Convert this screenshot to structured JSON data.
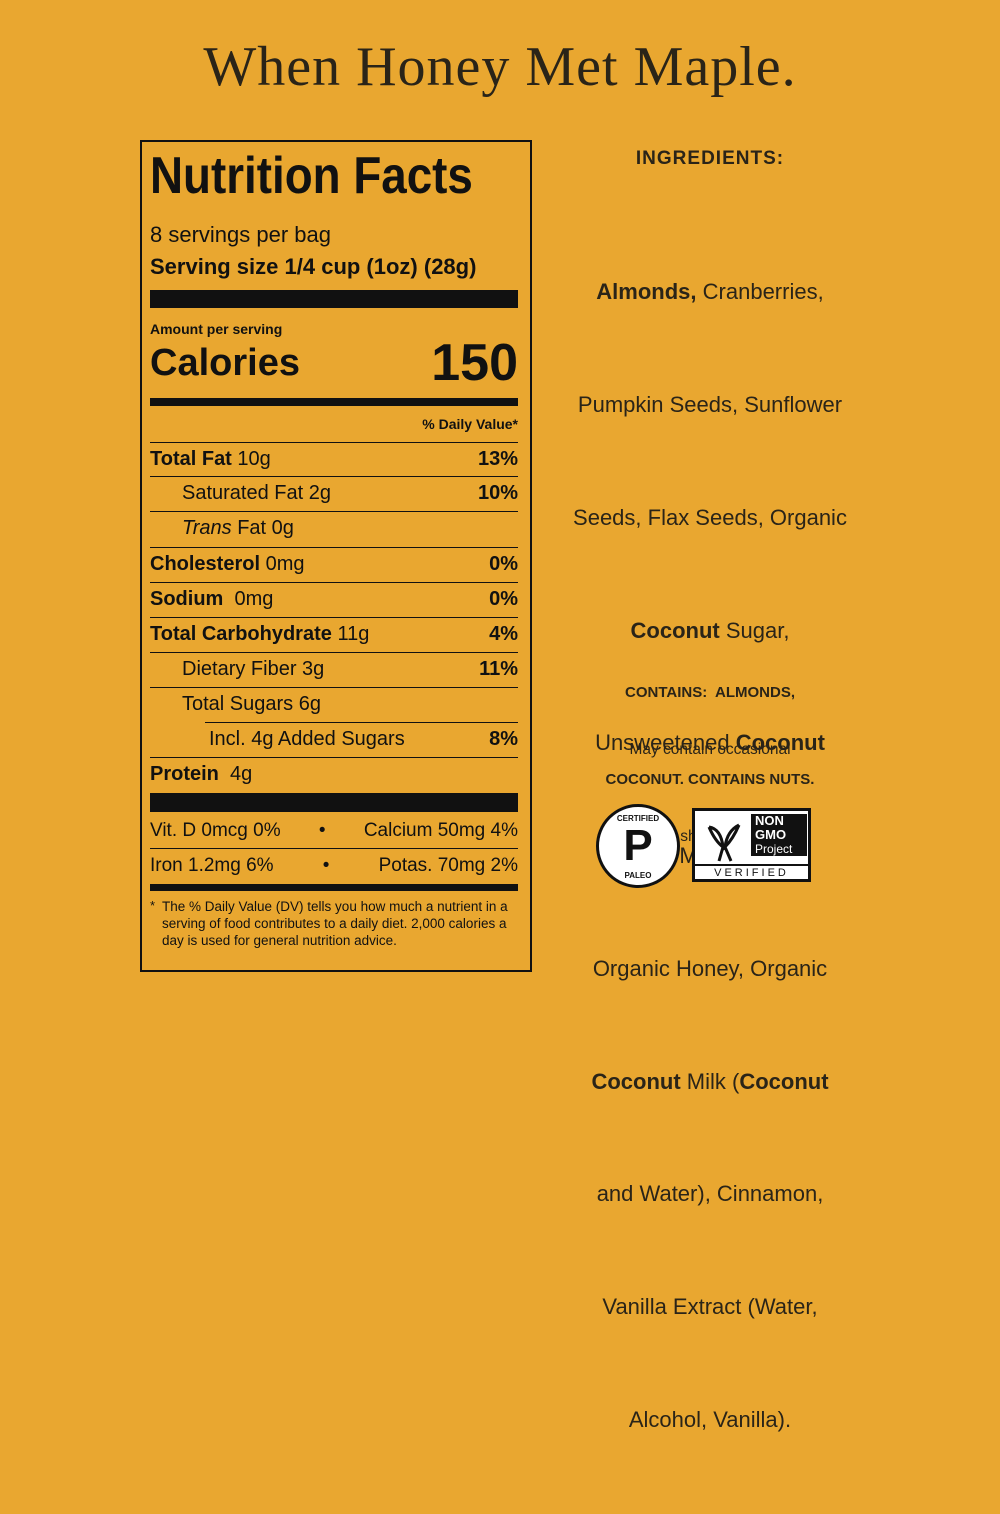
{
  "title": "When Honey Met Maple.",
  "nutrition": {
    "heading": "Nutrition Facts",
    "servings": "8 servings per bag",
    "serving_size_label": "Serving size",
    "serving_size_value": "1/4 cup (1oz) (28g)",
    "amount_per_serving": "Amount per serving",
    "calories_label": "Calories",
    "calories": 150,
    "dv_header": "% Daily Value*",
    "rows": [
      {
        "label": "Total Fat",
        "amount": "10g",
        "dv": "13%"
      },
      {
        "label": "Saturated Fat",
        "amount": "2g",
        "dv": "10%"
      },
      {
        "label_italic": "Trans",
        "label": "Fat",
        "amount": "0g"
      },
      {
        "label": "Cholesterol",
        "amount": "0mg",
        "dv": "0%"
      },
      {
        "label": "Sodium",
        "amount": "0mg",
        "dv": "0%"
      },
      {
        "label": "Total Carbohydrate",
        "amount": "11g",
        "dv": "4%"
      },
      {
        "label": "Dietary Fiber",
        "amount": "3g",
        "dv": "11%"
      },
      {
        "label": "Total Sugars",
        "amount": "6g"
      },
      {
        "label": "Incl. 4g Added Sugars",
        "dv": "8%"
      },
      {
        "label": "Protein",
        "amount": "4g"
      }
    ],
    "vitamins": [
      [
        "Vit. D 0mcg 0%",
        "Calcium 50mg 4%"
      ],
      [
        "Iron 1.2mg 6%",
        "Potas. 70mg 2%"
      ]
    ],
    "separator": "•",
    "footnote_mark": "*",
    "footnote": "The % Daily Value (DV) tells you how much a nutrient in a serving of food contributes to a daily diet. 2,000 calories a day is used for general nutrition advice."
  },
  "ingredients": {
    "heading": "INGREDIENTS:",
    "lines": [
      [
        "Almonds,",
        " Cranberries,"
      ],
      [
        "Pumpkin Seeds, Sunflower"
      ],
      [
        "Seeds, Flax Seeds, Organic"
      ],
      [
        "Coconut",
        " Sugar,"
      ],
      [
        "Unsweetened ",
        "Coconut"
      ],
      [
        "Chips, Maple Syrup,"
      ],
      [
        "Organic Honey, Organic"
      ],
      [
        "Coconut",
        " Milk (",
        "Coconut"
      ],
      [
        "and Water), Cinnamon,"
      ],
      [
        "Vanilla Extract (Water,"
      ],
      [
        "Alcohol, Vanilla)."
      ]
    ],
    "contains": [
      "CONTAINS:  ALMONDS,",
      "COCONUT. CONTAINS NUTS."
    ],
    "may_contain": [
      "May contain occasional",
      "nut shell pieces."
    ]
  },
  "badges": {
    "paleo": {
      "top": "CERTIFIED",
      "letter": "P",
      "bottom": "PALEO"
    },
    "non_gmo": {
      "line1": "NON",
      "line2": "GMO",
      "line3": "Project",
      "footer": "VERIFIED"
    }
  }
}
